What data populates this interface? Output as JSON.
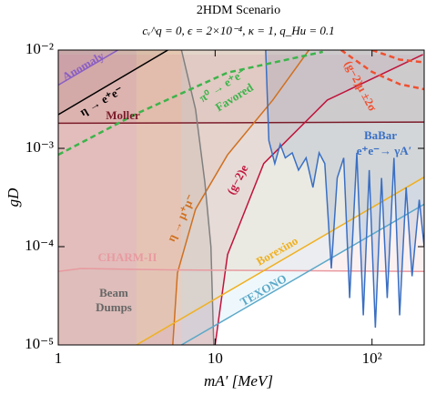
{
  "chart_data": {
    "type": "line",
    "title": "2HDM Scenario",
    "subtitle": "cᵥ^q = 0, ϵ = 2×10⁻⁴, κ = 1, q_Hu = 0.1",
    "x_label": "mA′ [MeV]",
    "y_label": "gD",
    "log_x": true,
    "log_y": true,
    "xlim": [
      1,
      215
    ],
    "ylim": [
      1e-05,
      0.01
    ],
    "xticks": [
      1,
      10,
      {
        "value": 100,
        "label": "10²"
      }
    ],
    "yticks": [
      {
        "value": 1e-05,
        "label": "10⁻⁵"
      },
      {
        "value": 0.0001,
        "label": "10⁻⁴"
      },
      {
        "value": 0.001,
        "label": "10⁻³"
      },
      {
        "value": 0.01,
        "label": "10⁻²"
      }
    ],
    "series": [
      {
        "color": "#7b1c2a",
        "fill": "above",
        "fill_color": "#c98080",
        "x": [
          1,
          215
        ],
        "values": [
          0.0018,
          0.00185
        ]
      },
      {
        "color": "#000000",
        "fill": "above",
        "fill_color": "#707070",
        "x": [
          1,
          5
        ],
        "values": [
          0.0022,
          0.01
        ]
      },
      {
        "color": "#8a5fc4",
        "fill": "above",
        "fill_color": "#8a5fc4",
        "x": [
          1,
          2.4
        ],
        "values": [
          0.0044,
          0.01
        ]
      },
      {
        "color": "#d07020",
        "fill": "left",
        "fill_color": "#e8a070",
        "x": [
          5.37,
          5.75,
          7.5,
          12,
          23.3,
          39.6
        ],
        "values": [
          1e-05,
          5.4e-05,
          0.00024,
          0.00086,
          0.0031,
          0.01
        ]
      },
      {
        "color": "#c0143c",
        "fill": "left",
        "fill_color": "#e07090",
        "x": [
          10,
          12,
          20.4,
          51.9,
          211
        ],
        "values": [
          1e-05,
          8.3e-05,
          0.0007,
          0.0031,
          0.009
        ]
      },
      {
        "color": "#808080",
        "fill": "left",
        "fill_color": "#908070",
        "x": [
          6.1,
          7.5,
          8.6,
          9.4,
          9.8
        ],
        "values": [
          0.01,
          0.0025,
          0.00045,
          0.0001,
          1e-05
        ]
      },
      {
        "color": "#e89aa0",
        "fill": "above",
        "fill_color": "#f0c0c0",
        "x": [
          1,
          1.4,
          5,
          215
        ],
        "values": [
          5.6e-05,
          6e-05,
          5.8e-05,
          5.6e-05
        ]
      },
      {
        "color": "#f0b020",
        "fill": "above",
        "fill_color": "#f5e0a0",
        "x": [
          3.15,
          215
        ],
        "values": [
          1e-05,
          0.00051
        ]
      },
      {
        "color": "#5aa8c8",
        "fill": "above",
        "fill_color": "#b0e0f0",
        "x": [
          6.1,
          215
        ],
        "values": [
          1e-05,
          0.00027
        ]
      },
      {
        "color": "#3a6fc4",
        "fill": "above",
        "fill_color": "#8090b0",
        "x": [
          21,
          22,
          24,
          26,
          28,
          31,
          34,
          38,
          42,
          46,
          50,
          55,
          60,
          66,
          72,
          80,
          88,
          96,
          105,
          115,
          125,
          138,
          150,
          165,
          180,
          200,
          215
        ],
        "values": [
          0.01,
          0.0012,
          0.0007,
          0.0011,
          0.0008,
          0.0009,
          0.0006,
          0.0008,
          0.0004,
          0.0009,
          0.0007,
          6e-05,
          0.0005,
          0.0008,
          3e-05,
          0.0009,
          2e-05,
          0.0006,
          1.5e-05,
          0.0005,
          3e-05,
          0.0008,
          2e-05,
          0.0004,
          5e-05,
          0.0003,
          0.0001
        ]
      },
      {
        "color": "#3cb44b",
        "dash": true,
        "x": [
          1,
          3.15,
          12,
          48.6
        ],
        "values": [
          0.00086,
          0.00225,
          0.0059,
          0.0096
        ]
      },
      {
        "color": "#f05030",
        "dash": true,
        "x": [
          63.5,
          100,
          150,
          214
        ],
        "values": [
          0.01,
          0.006,
          0.0045,
          0.004
        ]
      },
      {
        "color": "#f05030",
        "dash": true,
        "x": [
          100,
          150,
          214
        ],
        "values": [
          0.01,
          0.008,
          0.0075
        ]
      }
    ],
    "annotations": [
      {
        "text": "Anomaly"
      },
      {
        "text": "η → e⁺e⁻"
      },
      {
        "text": "Moller"
      },
      {
        "text": "π⁰ → e⁺e⁻"
      },
      {
        "text": "Favored"
      },
      {
        "text": "(g−2)μ ±2σ"
      },
      {
        "text": "BaBar"
      },
      {
        "text": "e⁺e⁻→ γA′"
      },
      {
        "text": "(g−2)e"
      },
      {
        "text": "η → μ⁺μ⁻"
      },
      {
        "text": "CHARM-II"
      },
      {
        "text": "Borexino"
      },
      {
        "text": "TEXONO"
      },
      {
        "text": "Beam"
      },
      {
        "text": "Dumps"
      }
    ]
  }
}
